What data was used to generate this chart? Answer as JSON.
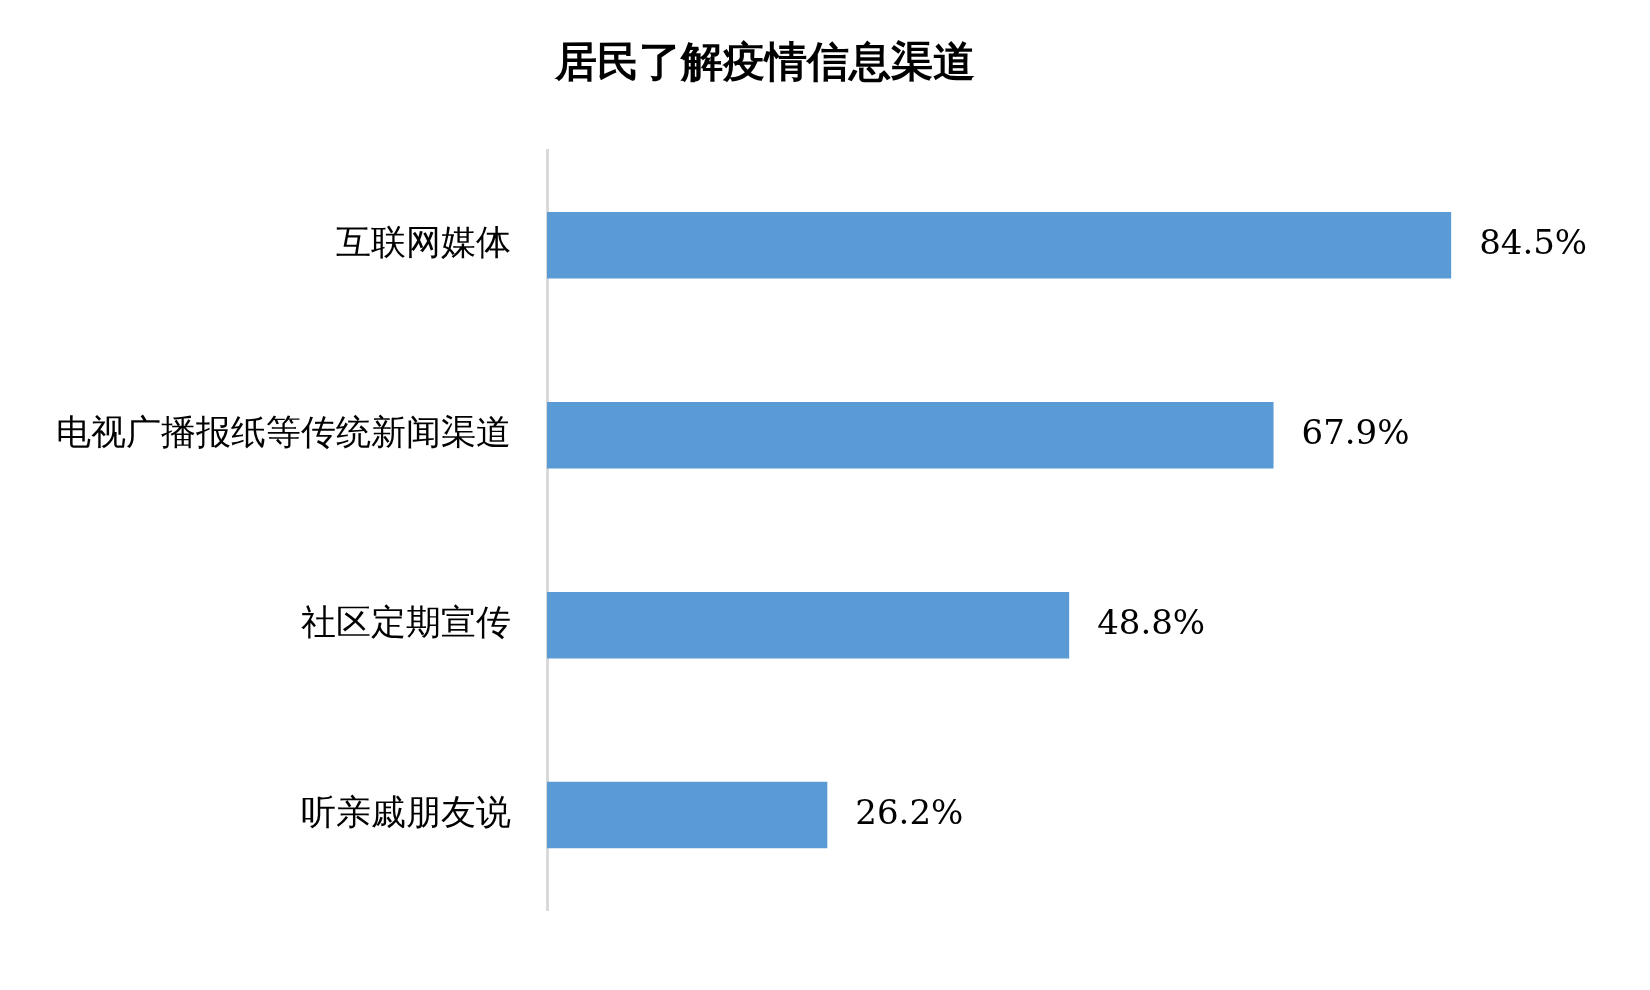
{
  "chart_data": {
    "type": "bar",
    "orientation": "horizontal",
    "title": "居民了解疫情信息渠道",
    "categories": [
      "互联网媒体",
      "电视广播报纸等传统新闻渠道",
      "社区定期宣传",
      "听亲戚朋友说"
    ],
    "values": [
      84.5,
      67.9,
      48.8,
      26.2
    ],
    "value_labels": [
      "84.5%",
      "67.9%",
      "48.8%",
      "26.2%"
    ],
    "color": "#5b9bd5"
  }
}
